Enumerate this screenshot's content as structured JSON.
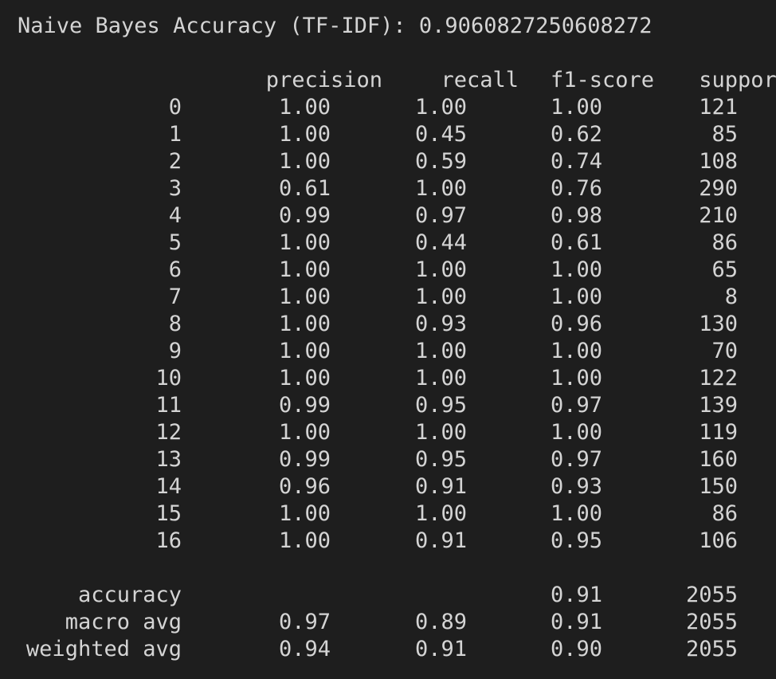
{
  "terminal": {
    "accuracy_line": "Naive Bayes Accuracy (TF-IDF): 0.9060827250608272"
  },
  "report": {
    "headers": {
      "label": "",
      "precision": "precision",
      "recall": "recall",
      "f1": "f1-score",
      "support": "support"
    },
    "classes": [
      {
        "label": "0",
        "precision": "1.00",
        "recall": "1.00",
        "f1": "1.00",
        "support": "121"
      },
      {
        "label": "1",
        "precision": "1.00",
        "recall": "0.45",
        "f1": "0.62",
        "support": "85"
      },
      {
        "label": "2",
        "precision": "1.00",
        "recall": "0.59",
        "f1": "0.74",
        "support": "108"
      },
      {
        "label": "3",
        "precision": "0.61",
        "recall": "1.00",
        "f1": "0.76",
        "support": "290"
      },
      {
        "label": "4",
        "precision": "0.99",
        "recall": "0.97",
        "f1": "0.98",
        "support": "210"
      },
      {
        "label": "5",
        "precision": "1.00",
        "recall": "0.44",
        "f1": "0.61",
        "support": "86"
      },
      {
        "label": "6",
        "precision": "1.00",
        "recall": "1.00",
        "f1": "1.00",
        "support": "65"
      },
      {
        "label": "7",
        "precision": "1.00",
        "recall": "1.00",
        "f1": "1.00",
        "support": "8"
      },
      {
        "label": "8",
        "precision": "1.00",
        "recall": "0.93",
        "f1": "0.96",
        "support": "130"
      },
      {
        "label": "9",
        "precision": "1.00",
        "recall": "1.00",
        "f1": "1.00",
        "support": "70"
      },
      {
        "label": "10",
        "precision": "1.00",
        "recall": "1.00",
        "f1": "1.00",
        "support": "122"
      },
      {
        "label": "11",
        "precision": "0.99",
        "recall": "0.95",
        "f1": "0.97",
        "support": "139"
      },
      {
        "label": "12",
        "precision": "1.00",
        "recall": "1.00",
        "f1": "1.00",
        "support": "119"
      },
      {
        "label": "13",
        "precision": "0.99",
        "recall": "0.95",
        "f1": "0.97",
        "support": "160"
      },
      {
        "label": "14",
        "precision": "0.96",
        "recall": "0.91",
        "f1": "0.93",
        "support": "150"
      },
      {
        "label": "15",
        "precision": "1.00",
        "recall": "1.00",
        "f1": "1.00",
        "support": "86"
      },
      {
        "label": "16",
        "precision": "1.00",
        "recall": "0.91",
        "f1": "0.95",
        "support": "106"
      }
    ],
    "summary": [
      {
        "label": "accuracy",
        "precision": "",
        "recall": "",
        "f1": "0.91",
        "support": "2055"
      },
      {
        "label": "macro avg",
        "precision": "0.97",
        "recall": "0.89",
        "f1": "0.91",
        "support": "2055"
      },
      {
        "label": "weighted avg",
        "precision": "0.94",
        "recall": "0.91",
        "f1": "0.90",
        "support": "2055"
      }
    ]
  },
  "colors": {
    "background": "#1e1e1e",
    "foreground": "#d4d4d4"
  }
}
